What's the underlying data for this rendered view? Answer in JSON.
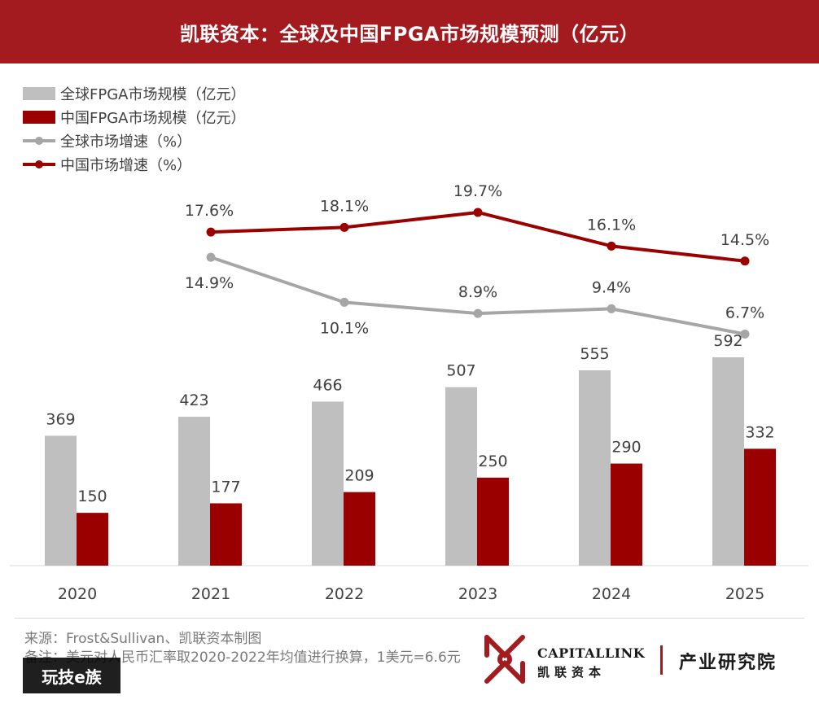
{
  "header": {
    "title": "凯联资本：全球及中国FPGA市场规模预测（亿元）"
  },
  "legend": [
    {
      "label": "全球FPGA市场规模（亿元）",
      "kind": "bar",
      "color": "#bfbfbf"
    },
    {
      "label": "中国FPGA市场规模（亿元）",
      "kind": "bar",
      "color": "#9a0000"
    },
    {
      "label": "全球市场增速（%）",
      "kind": "line",
      "color": "#a6a6a6"
    },
    {
      "label": "中国市场增速（%）",
      "kind": "line",
      "color": "#9a0000"
    }
  ],
  "chart_data": {
    "type": "bar+line",
    "categories": [
      "2020",
      "2021",
      "2022",
      "2023",
      "2024",
      "2025"
    ],
    "bar_series": [
      {
        "name": "全球FPGA市场规模（亿元）",
        "values": [
          369,
          423,
          466,
          507,
          555,
          592
        ],
        "color": "#bfbfbf"
      },
      {
        "name": "中国FPGA市场规模（亿元）",
        "values": [
          150,
          177,
          209,
          250,
          290,
          332
        ],
        "color": "#9a0000"
      }
    ],
    "line_series": [
      {
        "name": "全球市场增速（%）",
        "values": [
          14.9,
          10.1,
          8.9,
          9.4,
          6.7
        ],
        "x": [
          "2021",
          "2022",
          "2023",
          "2024",
          "2025"
        ],
        "labels": [
          "14.9%",
          "10.1%",
          "8.9%",
          "9.4%",
          "6.7%"
        ],
        "color": "#a6a6a6"
      },
      {
        "name": "中国市场增速（%）",
        "values": [
          17.6,
          18.1,
          19.7,
          16.1,
          14.5
        ],
        "x": [
          "2021",
          "2022",
          "2023",
          "2024",
          "2025"
        ],
        "labels": [
          "17.6%",
          "18.1%",
          "19.7%",
          "16.1%",
          "14.5%"
        ],
        "color": "#9a0000"
      }
    ],
    "grid": false,
    "legend_position": "top-left"
  },
  "footer": {
    "source": "来源：Frost&Sullivan、凯联资本制图",
    "note": "备注：美元对人民币汇率取2020-2022年均值进行换算，1美元=6.6元",
    "watermark": "玩技e族"
  },
  "logo": {
    "en": "CAPITALLINK",
    "cn": "凯联资本",
    "tagline": "产业研究院"
  }
}
